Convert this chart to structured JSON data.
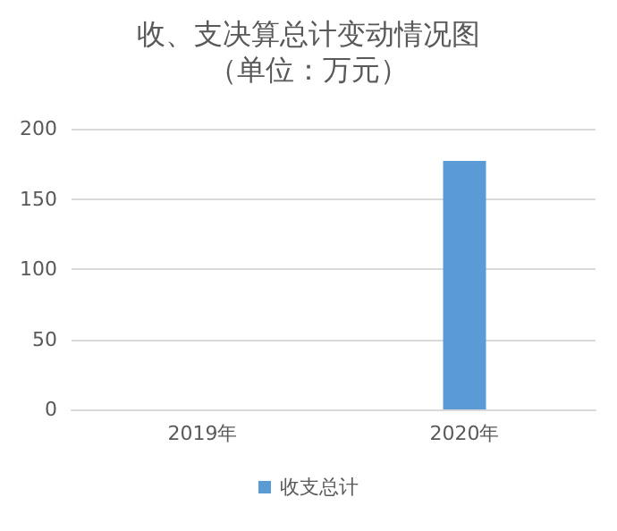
{
  "chart_data": {
    "type": "bar",
    "title": "收、支决算总计变动情况图",
    "subtitle": "（单位：万元）",
    "categories": [
      "2019年",
      "2020年"
    ],
    "series": [
      {
        "name": "收支总计",
        "color": "#5b9bd5",
        "values": [
          0,
          177
        ]
      }
    ],
    "ylim": [
      0,
      200
    ],
    "yticks": [
      0,
      50,
      100,
      150,
      200
    ],
    "grid": "y",
    "legend": "bottom"
  }
}
